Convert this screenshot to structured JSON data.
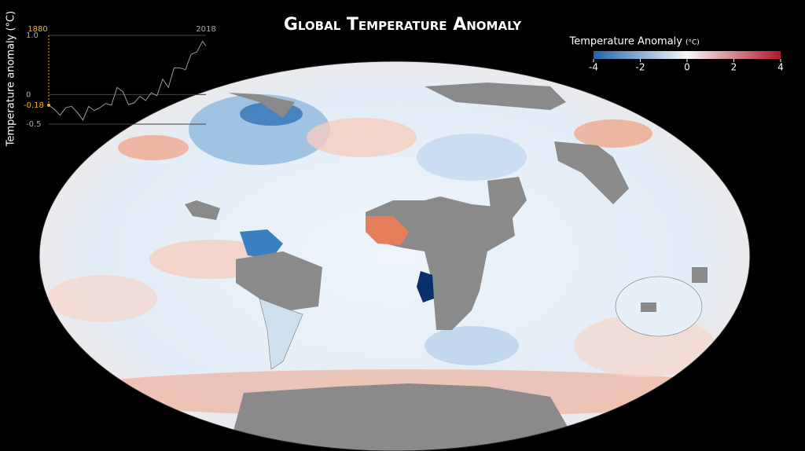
{
  "title": "Global Temperature Anomaly",
  "colorbar": {
    "label": "Temperature Anomaly",
    "unit": "(°C)",
    "lim": [
      -4,
      4
    ],
    "ticks": [
      -4,
      -2,
      0,
      2,
      4
    ],
    "colors": [
      "#2166ac",
      "#f7f7f7",
      "#b2182b"
    ]
  },
  "chart_data": {
    "type": "line",
    "ylabel": "Temperature anomaly (°C)",
    "xlim": [
      1880,
      2018
    ],
    "ylim": [
      -0.5,
      1.0
    ],
    "yticks": [
      {
        "value": 1.0,
        "label": "1.0"
      },
      0,
      {
        "value": -0.5,
        "label": "-0.5"
      }
    ],
    "grid": true,
    "x": [
      1880,
      1885,
      1890,
      1895,
      1900,
      1905,
      1910,
      1915,
      1920,
      1925,
      1930,
      1935,
      1940,
      1945,
      1950,
      1955,
      1960,
      1965,
      1970,
      1975,
      1980,
      1985,
      1990,
      1995,
      2000,
      2005,
      2010,
      2015,
      2018
    ],
    "series": [
      {
        "name": "Temperature anomaly",
        "color": "#9a9a9a",
        "values": [
          -0.18,
          -0.25,
          -0.35,
          -0.22,
          -0.2,
          -0.3,
          -0.43,
          -0.2,
          -0.27,
          -0.22,
          -0.15,
          -0.18,
          0.12,
          0.05,
          -0.17,
          -0.14,
          -0.03,
          -0.1,
          0.03,
          -0.02,
          0.26,
          0.12,
          0.45,
          0.45,
          0.42,
          0.68,
          0.72,
          0.9,
          0.82
        ]
      }
    ],
    "current": {
      "year": 1880,
      "value": -0.18,
      "color": "#f0b429"
    }
  }
}
